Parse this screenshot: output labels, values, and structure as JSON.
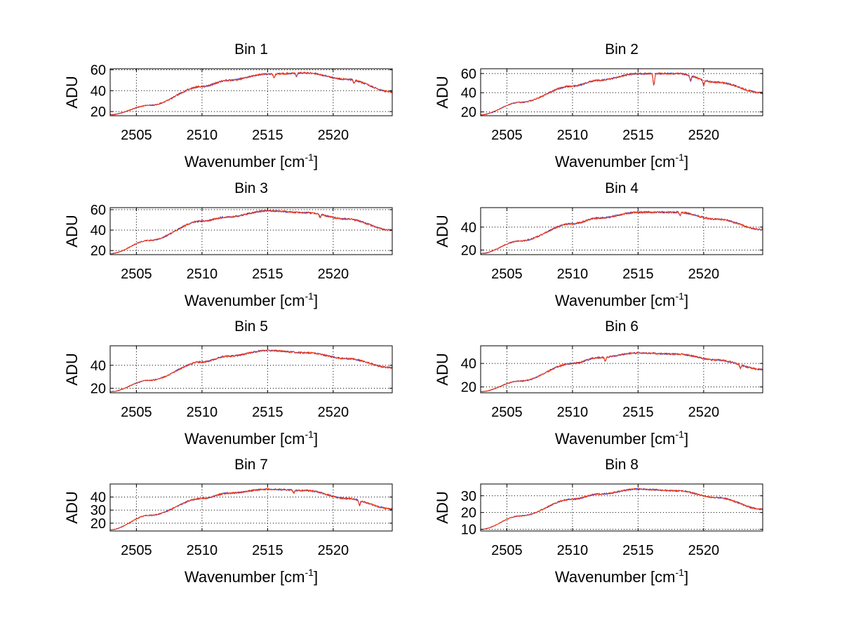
{
  "figure": {
    "background": "#ffffff",
    "series_colors": [
      "#3333cc",
      "#ff3300"
    ]
  },
  "chart_data": [
    {
      "type": "line",
      "title": "Bin 1",
      "xlabel": "Wavenumber [cm",
      "xlabel_sup": "-1",
      "xlabel_end": "]",
      "ylabel": "ADU",
      "xlim": [
        2503,
        2524.5
      ],
      "ylim": [
        16,
        61
      ],
      "xticks": [
        2505,
        2510,
        2515,
        2520
      ],
      "yticks": [
        20,
        40,
        60
      ],
      "profile": [
        [
          2503,
          17
        ],
        [
          2506,
          26
        ],
        [
          2510,
          44
        ],
        [
          2512,
          50
        ],
        [
          2515,
          56
        ],
        [
          2518,
          57
        ],
        [
          2521,
          51
        ],
        [
          2524.5,
          39
        ]
      ],
      "dips": [
        [
          2515.5,
          4
        ],
        [
          2517.2,
          3
        ],
        [
          2521.6,
          3
        ]
      ],
      "noise": 1.6,
      "grid": true
    },
    {
      "type": "line",
      "title": "Bin 2",
      "xlabel": "Wavenumber [cm",
      "xlabel_sup": "-1",
      "xlabel_end": "]",
      "ylabel": "ADU",
      "xlim": [
        2503,
        2524.5
      ],
      "ylim": [
        16,
        65
      ],
      "xticks": [
        2505,
        2510,
        2515,
        2520
      ],
      "yticks": [
        20,
        40,
        60
      ],
      "profile": [
        [
          2503,
          17
        ],
        [
          2506,
          30
        ],
        [
          2510,
          47
        ],
        [
          2512,
          53
        ],
        [
          2515,
          60
        ],
        [
          2518,
          60
        ],
        [
          2521,
          51
        ],
        [
          2524.5,
          40
        ]
      ],
      "dips": [
        [
          2516.2,
          12
        ],
        [
          2519,
          5
        ],
        [
          2520,
          5
        ]
      ],
      "noise": 1.8,
      "grid": true
    },
    {
      "type": "line",
      "title": "Bin 3",
      "xlabel": "Wavenumber [cm",
      "xlabel_sup": "-1",
      "xlabel_end": "]",
      "ylabel": "ADU",
      "xlim": [
        2503,
        2524.5
      ],
      "ylim": [
        16,
        62
      ],
      "xticks": [
        2505,
        2510,
        2515,
        2520
      ],
      "yticks": [
        20,
        40,
        60
      ],
      "profile": [
        [
          2503,
          17
        ],
        [
          2506,
          30
        ],
        [
          2510,
          49
        ],
        [
          2512,
          53
        ],
        [
          2515,
          59
        ],
        [
          2518,
          57
        ],
        [
          2521,
          51
        ],
        [
          2524.5,
          40
        ]
      ],
      "dips": [
        [
          2519,
          3
        ]
      ],
      "noise": 1.6,
      "grid": true
    },
    {
      "type": "line",
      "title": "Bin 4",
      "xlabel": "Wavenumber [cm",
      "xlabel_sup": "-1",
      "xlabel_end": "]",
      "ylabel": "ADU",
      "xlim": [
        2503,
        2524.5
      ],
      "ylim": [
        16,
        57
      ],
      "xticks": [
        2505,
        2510,
        2515,
        2520
      ],
      "yticks": [
        20,
        40
      ],
      "profile": [
        [
          2503,
          17
        ],
        [
          2506,
          28
        ],
        [
          2510,
          43
        ],
        [
          2512,
          48
        ],
        [
          2515,
          53
        ],
        [
          2518,
          53
        ],
        [
          2521,
          47
        ],
        [
          2524.5,
          38
        ]
      ],
      "dips": [
        [
          2518.2,
          3
        ]
      ],
      "noise": 1.5,
      "grid": true
    },
    {
      "type": "line",
      "title": "Bin 5",
      "xlabel": "Wavenumber [cm",
      "xlabel_sup": "-1",
      "xlabel_end": "]",
      "ylabel": "ADU",
      "xlim": [
        2503,
        2524.5
      ],
      "ylim": [
        16,
        57
      ],
      "xticks": [
        2505,
        2510,
        2515,
        2520
      ],
      "yticks": [
        20,
        40
      ],
      "profile": [
        [
          2503,
          17
        ],
        [
          2506,
          27
        ],
        [
          2510,
          43
        ],
        [
          2512,
          48
        ],
        [
          2515,
          53
        ],
        [
          2518,
          51
        ],
        [
          2521,
          46
        ],
        [
          2524.5,
          38
        ]
      ],
      "dips": [],
      "noise": 1.4,
      "grid": true
    },
    {
      "type": "line",
      "title": "Bin 6",
      "xlabel": "Wavenumber [cm",
      "xlabel_sup": "-1",
      "xlabel_end": "]",
      "ylabel": "ADU",
      "xlim": [
        2503,
        2524.5
      ],
      "ylim": [
        15,
        55
      ],
      "xticks": [
        2505,
        2510,
        2515,
        2520
      ],
      "yticks": [
        20,
        40
      ],
      "profile": [
        [
          2503,
          16
        ],
        [
          2506,
          25
        ],
        [
          2510,
          40
        ],
        [
          2512,
          45
        ],
        [
          2515,
          49
        ],
        [
          2518,
          48
        ],
        [
          2521,
          43
        ],
        [
          2524.5,
          35
        ]
      ],
      "dips": [
        [
          2512.5,
          3
        ],
        [
          2522.8,
          3
        ]
      ],
      "noise": 1.4,
      "grid": true
    },
    {
      "type": "line",
      "title": "Bin 7",
      "xlabel": "Wavenumber [cm",
      "xlabel_sup": "-1",
      "xlabel_end": "]",
      "ylabel": "ADU",
      "xlim": [
        2503,
        2524.5
      ],
      "ylim": [
        14,
        50
      ],
      "xticks": [
        2505,
        2510,
        2515,
        2520
      ],
      "yticks": [
        20,
        30,
        40
      ],
      "profile": [
        [
          2503,
          15
        ],
        [
          2506,
          26
        ],
        [
          2510,
          39
        ],
        [
          2512,
          43
        ],
        [
          2515,
          46
        ],
        [
          2518,
          45
        ],
        [
          2521,
          39
        ],
        [
          2524.5,
          31
        ]
      ],
      "dips": [
        [
          2522,
          4
        ],
        [
          2517,
          2
        ]
      ],
      "noise": 1.2,
      "grid": true
    },
    {
      "type": "line",
      "title": "Bin 8",
      "xlabel": "Wavenumber [cm",
      "xlabel_sup": "-1",
      "xlabel_end": "]",
      "ylabel": "ADU",
      "xlim": [
        2503,
        2524.5
      ],
      "ylim": [
        9,
        37
      ],
      "xticks": [
        2505,
        2510,
        2515,
        2520
      ],
      "yticks": [
        10,
        20,
        30
      ],
      "profile": [
        [
          2503,
          10
        ],
        [
          2506,
          18
        ],
        [
          2510,
          28
        ],
        [
          2512,
          31
        ],
        [
          2515,
          34
        ],
        [
          2518,
          33
        ],
        [
          2521,
          29
        ],
        [
          2524.5,
          22
        ]
      ],
      "dips": [],
      "noise": 0.9,
      "grid": true
    }
  ]
}
